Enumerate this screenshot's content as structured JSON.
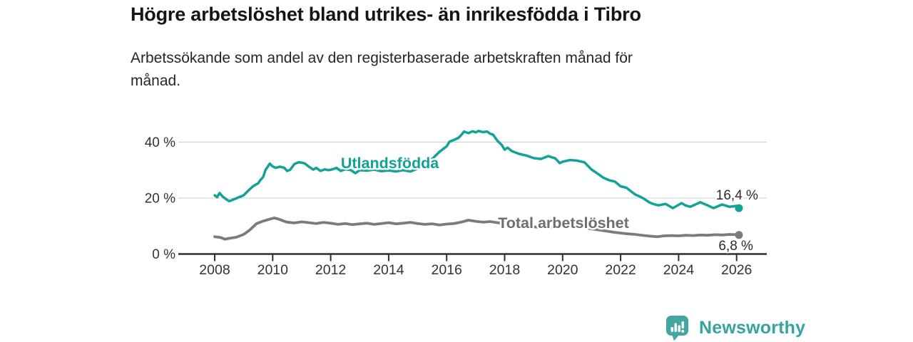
{
  "header": {
    "title": "Högre arbetslöshet bland utrikes- än inrikesfödda i Tibro",
    "subtitle_line1": "Arbetssökande som andel av den registerbaserade arbetskraften månad för",
    "subtitle_line2": "månad."
  },
  "branding": {
    "logo_text": "Newsworthy",
    "logo_icon": "bar-chart-speech-bubble-icon",
    "logo_color": "#44a5a1",
    "logo_text_color": "#35a39e"
  },
  "colors": {
    "foreign_born_line": "#12a296",
    "total_line": "#7b7b7b",
    "total_label": "#6e6e6e",
    "axis": "#2f2f2f",
    "tick_text": "#333333",
    "grid": "#cfcfcf",
    "value_label_text": "#2b2b2b",
    "background": "#ffffff"
  },
  "chart_data": {
    "type": "line",
    "title": "Högre arbetslöshet bland utrikes- än inrikesfödda i Tibro",
    "subtitle": "Arbetssökande som andel av den registerbaserade arbetskraften månad för månad.",
    "xlabel": "",
    "ylabel": "",
    "grid": "horizontal-only",
    "legend_position": "inline-labels-on-lines",
    "x_axis": {
      "ticks": [
        2008,
        2010,
        2012,
        2014,
        2016,
        2018,
        2020,
        2022,
        2024,
        2026
      ],
      "range": [
        2006.75,
        2027.05
      ]
    },
    "y_axis": {
      "ticks": [
        {
          "value": 0,
          "label": "0 %"
        },
        {
          "value": 20,
          "label": "20 %"
        },
        {
          "value": 40,
          "label": "40 %"
        }
      ],
      "range": [
        0,
        48
      ]
    },
    "series": [
      {
        "name": "Utlandsfödda",
        "color": "#12a296",
        "line_width": 3.5,
        "end_value": 16.4,
        "end_label": "16,4 %",
        "end_label_offset": [
          27,
          -12
        ],
        "name_label_pos": {
          "year": 2014.04,
          "value": 30.7
        },
        "points": [
          [
            2008.0,
            21.0
          ],
          [
            2008.08,
            20.3
          ],
          [
            2008.17,
            21.8
          ],
          [
            2008.25,
            20.8
          ],
          [
            2008.33,
            20.1
          ],
          [
            2008.42,
            19.4
          ],
          [
            2008.5,
            18.9
          ],
          [
            2008.58,
            19.2
          ],
          [
            2008.67,
            19.6
          ],
          [
            2008.75,
            19.9
          ],
          [
            2008.83,
            20.3
          ],
          [
            2008.92,
            20.6
          ],
          [
            2009.0,
            21.0
          ],
          [
            2009.17,
            22.8
          ],
          [
            2009.33,
            24.3
          ],
          [
            2009.5,
            25.3
          ],
          [
            2009.58,
            26.5
          ],
          [
            2009.67,
            27.5
          ],
          [
            2009.75,
            30.0
          ],
          [
            2009.9,
            32.3
          ],
          [
            2010.0,
            31.3
          ],
          [
            2010.1,
            30.8
          ],
          [
            2010.25,
            31.2
          ],
          [
            2010.4,
            30.8
          ],
          [
            2010.5,
            29.7
          ],
          [
            2010.6,
            30.1
          ],
          [
            2010.75,
            32.2
          ],
          [
            2010.9,
            32.8
          ],
          [
            2011.0,
            32.7
          ],
          [
            2011.1,
            32.4
          ],
          [
            2011.25,
            31.2
          ],
          [
            2011.4,
            30.2
          ],
          [
            2011.5,
            30.8
          ],
          [
            2011.65,
            29.7
          ],
          [
            2011.8,
            30.3
          ],
          [
            2011.9,
            30.0
          ],
          [
            2012.0,
            30.1
          ],
          [
            2012.2,
            30.8
          ],
          [
            2012.35,
            29.7
          ],
          [
            2012.5,
            30.3
          ],
          [
            2012.7,
            30.0
          ],
          [
            2012.85,
            28.9
          ],
          [
            2013.0,
            30.0
          ],
          [
            2013.25,
            29.8
          ],
          [
            2013.5,
            30.2
          ],
          [
            2013.75,
            29.6
          ],
          [
            2014.0,
            29.9
          ],
          [
            2014.25,
            29.5
          ],
          [
            2014.5,
            30.0
          ],
          [
            2014.75,
            29.5
          ],
          [
            2015.0,
            30.5
          ],
          [
            2015.25,
            32.0
          ],
          [
            2015.5,
            34.0
          ],
          [
            2015.75,
            36.5
          ],
          [
            2016.0,
            38.5
          ],
          [
            2016.1,
            40.2
          ],
          [
            2016.25,
            40.8
          ],
          [
            2016.4,
            41.5
          ],
          [
            2016.5,
            42.5
          ],
          [
            2016.6,
            43.8
          ],
          [
            2016.75,
            43.2
          ],
          [
            2016.9,
            43.9
          ],
          [
            2017.0,
            43.5
          ],
          [
            2017.1,
            44.0
          ],
          [
            2017.25,
            43.6
          ],
          [
            2017.4,
            43.8
          ],
          [
            2017.5,
            43.0
          ],
          [
            2017.6,
            42.7
          ],
          [
            2017.75,
            40.5
          ],
          [
            2017.9,
            39.0
          ],
          [
            2018.0,
            37.3
          ],
          [
            2018.1,
            38.0
          ],
          [
            2018.25,
            36.8
          ],
          [
            2018.5,
            35.8
          ],
          [
            2018.75,
            35.2
          ],
          [
            2019.0,
            34.3
          ],
          [
            2019.25,
            34.0
          ],
          [
            2019.5,
            35.0
          ],
          [
            2019.75,
            34.2
          ],
          [
            2019.9,
            32.5
          ],
          [
            2020.0,
            33.0
          ],
          [
            2020.25,
            33.6
          ],
          [
            2020.5,
            33.4
          ],
          [
            2020.75,
            32.8
          ],
          [
            2021.0,
            30.2
          ],
          [
            2021.2,
            28.8
          ],
          [
            2021.4,
            27.3
          ],
          [
            2021.6,
            26.4
          ],
          [
            2021.8,
            25.9
          ],
          [
            2022.0,
            24.2
          ],
          [
            2022.2,
            23.7
          ],
          [
            2022.35,
            22.5
          ],
          [
            2022.5,
            21.3
          ],
          [
            2022.65,
            20.6
          ],
          [
            2022.8,
            19.8
          ],
          [
            2023.0,
            18.4
          ],
          [
            2023.15,
            17.8
          ],
          [
            2023.3,
            17.4
          ],
          [
            2023.55,
            17.9
          ],
          [
            2023.8,
            16.4
          ],
          [
            2024.1,
            18.2
          ],
          [
            2024.25,
            17.3
          ],
          [
            2024.4,
            16.9
          ],
          [
            2024.6,
            17.8
          ],
          [
            2024.75,
            18.5
          ],
          [
            2025.0,
            17.4
          ],
          [
            2025.2,
            16.4
          ],
          [
            2025.5,
            17.7
          ],
          [
            2025.75,
            16.9
          ],
          [
            2026.0,
            17.2
          ],
          [
            2026.08,
            16.4
          ]
        ]
      },
      {
        "name": "Total arbetslöshet",
        "color": "#7b7b7b",
        "label_color": "#6e6e6e",
        "line_width": 3.8,
        "end_value": 6.8,
        "end_label": "6,8 %",
        "end_label_offset": [
          20,
          21
        ],
        "name_label_pos": {
          "year": 2020.03,
          "value": 9.3
        },
        "points": [
          [
            2008.0,
            6.2
          ],
          [
            2008.2,
            5.9
          ],
          [
            2008.35,
            5.3
          ],
          [
            2008.5,
            5.6
          ],
          [
            2008.75,
            6.0
          ],
          [
            2009.0,
            7.0
          ],
          [
            2009.2,
            8.5
          ],
          [
            2009.45,
            10.9
          ],
          [
            2009.65,
            11.7
          ],
          [
            2009.85,
            12.3
          ],
          [
            2010.05,
            12.9
          ],
          [
            2010.2,
            12.5
          ],
          [
            2010.35,
            11.9
          ],
          [
            2010.5,
            11.4
          ],
          [
            2010.75,
            11.1
          ],
          [
            2011.0,
            11.5
          ],
          [
            2011.25,
            11.2
          ],
          [
            2011.5,
            10.9
          ],
          [
            2011.75,
            11.3
          ],
          [
            2012.0,
            11.0
          ],
          [
            2012.25,
            10.6
          ],
          [
            2012.5,
            10.9
          ],
          [
            2012.75,
            10.5
          ],
          [
            2013.0,
            10.8
          ],
          [
            2013.25,
            11.0
          ],
          [
            2013.5,
            10.6
          ],
          [
            2013.75,
            10.9
          ],
          [
            2014.0,
            11.2
          ],
          [
            2014.25,
            10.8
          ],
          [
            2014.5,
            11.0
          ],
          [
            2014.75,
            11.3
          ],
          [
            2015.0,
            10.9
          ],
          [
            2015.25,
            10.6
          ],
          [
            2015.5,
            10.8
          ],
          [
            2015.75,
            10.4
          ],
          [
            2016.0,
            10.7
          ],
          [
            2016.25,
            10.9
          ],
          [
            2016.5,
            11.4
          ],
          [
            2016.75,
            12.1
          ],
          [
            2017.0,
            11.7
          ],
          [
            2017.25,
            11.4
          ],
          [
            2017.5,
            11.6
          ],
          [
            2017.75,
            11.2
          ],
          [
            2018.0,
            10.8
          ],
          [
            2018.25,
            10.5
          ],
          [
            2018.5,
            10.2
          ],
          [
            2018.75,
            10.0
          ],
          [
            2019.0,
            9.7
          ],
          [
            2019.25,
            9.5
          ],
          [
            2019.5,
            9.4
          ],
          [
            2019.75,
            9.6
          ],
          [
            2020.0,
            9.9
          ],
          [
            2020.25,
            10.2
          ],
          [
            2020.5,
            9.8
          ],
          [
            2020.75,
            9.4
          ],
          [
            2021.0,
            9.0
          ],
          [
            2021.25,
            8.6
          ],
          [
            2021.5,
            8.2
          ],
          [
            2021.75,
            7.8
          ],
          [
            2022.0,
            7.5
          ],
          [
            2022.25,
            7.2
          ],
          [
            2022.5,
            7.0
          ],
          [
            2022.75,
            6.7
          ],
          [
            2023.0,
            6.4
          ],
          [
            2023.25,
            6.2
          ],
          [
            2023.5,
            6.5
          ],
          [
            2023.75,
            6.6
          ],
          [
            2024.0,
            6.5
          ],
          [
            2024.25,
            6.7
          ],
          [
            2024.5,
            6.6
          ],
          [
            2024.75,
            6.8
          ],
          [
            2025.0,
            6.7
          ],
          [
            2025.25,
            6.9
          ],
          [
            2025.5,
            6.8
          ],
          [
            2025.75,
            7.0
          ],
          [
            2026.0,
            6.9
          ],
          [
            2026.08,
            6.8
          ]
        ]
      }
    ]
  }
}
